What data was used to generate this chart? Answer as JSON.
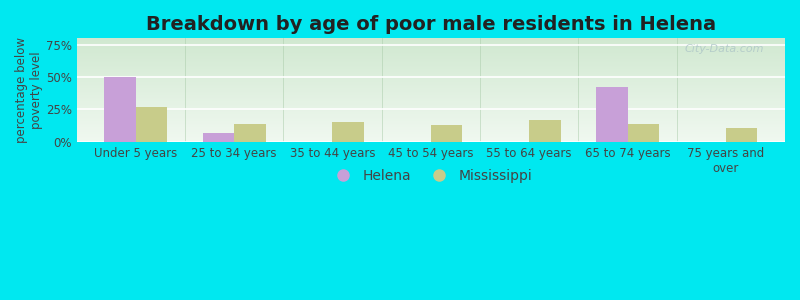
{
  "title": "Breakdown by age of poor male residents in Helena",
  "categories": [
    "Under 5 years",
    "25 to 34 years",
    "35 to 44 years",
    "45 to 54 years",
    "55 to 64 years",
    "65 to 74 years",
    "75 years and\nover"
  ],
  "helena_values": [
    50,
    7,
    0,
    0,
    0,
    42,
    0
  ],
  "mississippi_values": [
    27,
    14,
    15,
    13,
    17,
    14,
    11
  ],
  "helena_color": "#c8a0d8",
  "mississippi_color": "#c8cc8a",
  "background_outer": "#00e8f0",
  "ylabel": "percentage below\npoverty level",
  "ylim": [
    0,
    80
  ],
  "yticks": [
    0,
    25,
    50,
    75
  ],
  "ytick_labels": [
    "0%",
    "25%",
    "50%",
    "75%"
  ],
  "bar_width": 0.32,
  "title_fontsize": 14,
  "axis_fontsize": 8.5,
  "legend_fontsize": 10,
  "watermark": "City-Data.com",
  "grad_top": "#d0e8d0",
  "grad_bottom": "#f0f8f0"
}
